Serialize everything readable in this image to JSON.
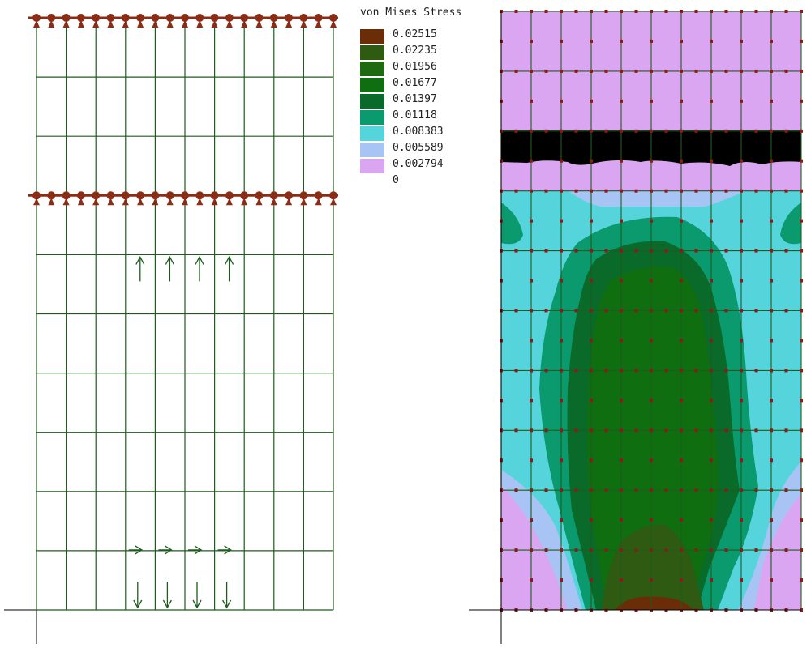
{
  "legend": {
    "title": "von Mises Stress",
    "entries": [
      {
        "label": "0.02515",
        "color": "#6b2c08"
      },
      {
        "label": "0.02235",
        "color": "#2f5a12"
      },
      {
        "label": "0.01956",
        "color": "#1e6a10"
      },
      {
        "label": "0.01677",
        "color": "#0f6e0f"
      },
      {
        "label": "0.01397",
        "color": "#0a6a2a"
      },
      {
        "label": "0.01118",
        "color": "#0a9a6e"
      },
      {
        "label": "0.008383",
        "color": "#56d4dc"
      },
      {
        "label": "0.005589",
        "color": "#a8c4f4"
      },
      {
        "label": "0.002794",
        "color": "#dba6f1"
      },
      {
        "label": "0",
        "color": "#ffffff"
      }
    ]
  },
  "colors": {
    "mesh_line": "#1d5c1d",
    "support": "#8b2d16",
    "node": "#8b1a1a",
    "band": "#000000",
    "axis": "#000000"
  },
  "left_panel": {
    "columns": 10,
    "rows": 10,
    "support_rows": [
      "top",
      "row-3"
    ],
    "load_arrows": [
      {
        "row": "upper",
        "direction": "up",
        "count": 4
      },
      {
        "row": "lower",
        "direction": "right",
        "count": 4
      },
      {
        "row": "bottom",
        "direction": "down",
        "count": 4
      }
    ]
  },
  "right_panel": {
    "columns": 10,
    "rows": 10,
    "contour_field": "von Mises Stress"
  }
}
